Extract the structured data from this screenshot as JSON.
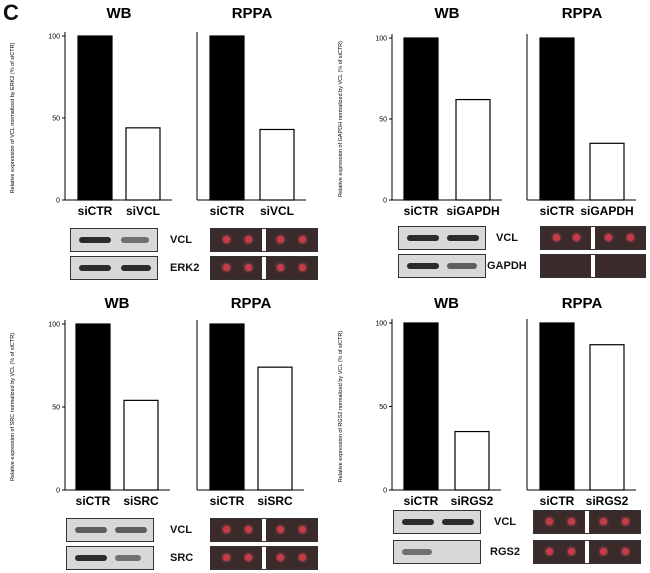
{
  "panel_letter": "C",
  "chart_data": [
    {
      "type": "bar",
      "title": "WB",
      "ylabel": "Relative expression of VCL normalized by ERK2 (% of siCTR)",
      "categories": [
        "siCTR",
        "siVCL"
      ],
      "values": [
        100,
        44
      ],
      "ylim": [
        0,
        100
      ],
      "yticks": [
        "0",
        "50",
        "100"
      ],
      "bar_colors": [
        "#000000",
        "#ffffff"
      ]
    },
    {
      "type": "bar",
      "title": "RPPA",
      "ylabel": "",
      "categories": [
        "siCTR",
        "siVCL"
      ],
      "values": [
        100,
        43
      ],
      "ylim": [
        0,
        100
      ],
      "yticks": [],
      "bar_colors": [
        "#000000",
        "#ffffff"
      ]
    },
    {
      "type": "bar",
      "title": "WB",
      "ylabel": "Relative expression of GAPDH normalized by VCL (% of siCTR)",
      "categories": [
        "siCTR",
        "siGAPDH"
      ],
      "values": [
        100,
        62
      ],
      "ylim": [
        0,
        100
      ],
      "yticks": [
        "0",
        "50",
        "100"
      ],
      "bar_colors": [
        "#000000",
        "#ffffff"
      ]
    },
    {
      "type": "bar",
      "title": "RPPA",
      "ylabel": "",
      "categories": [
        "siCTR",
        "siGAPDH"
      ],
      "values": [
        100,
        35
      ],
      "ylim": [
        0,
        100
      ],
      "yticks": [],
      "bar_colors": [
        "#000000",
        "#ffffff"
      ]
    },
    {
      "type": "bar",
      "title": "WB",
      "ylabel": "Relative expression of SRC normalized by VCL (% of siCTR)",
      "categories": [
        "siCTR",
        "siSRC"
      ],
      "values": [
        100,
        54
      ],
      "ylim": [
        0,
        100
      ],
      "yticks": [
        "0",
        "50",
        "100"
      ],
      "bar_colors": [
        "#000000",
        "#ffffff"
      ]
    },
    {
      "type": "bar",
      "title": "RPPA",
      "ylabel": "",
      "categories": [
        "siCTR",
        "siSRC"
      ],
      "values": [
        100,
        74
      ],
      "ylim": [
        0,
        100
      ],
      "yticks": [],
      "bar_colors": [
        "#000000",
        "#ffffff"
      ]
    },
    {
      "type": "bar",
      "title": "WB",
      "ylabel": "Relative expression of RGS2 normalized by VCL (% of siCTR)",
      "categories": [
        "siCTR",
        "siRGS2"
      ],
      "values": [
        100,
        35
      ],
      "ylim": [
        0,
        100
      ],
      "yticks": [
        "0",
        "50",
        "100"
      ],
      "bar_colors": [
        "#000000",
        "#ffffff"
      ]
    },
    {
      "type": "bar",
      "title": "RPPA",
      "ylabel": "",
      "categories": [
        "siCTR",
        "siRGS2"
      ],
      "values": [
        100,
        87
      ],
      "ylim": [
        0,
        100
      ],
      "yticks": [],
      "bar_colors": [
        "#000000",
        "#ffffff"
      ]
    }
  ],
  "blot_labels": {
    "tl": [
      "VCL",
      "ERK2"
    ],
    "tr": [
      "VCL",
      "GAPDH"
    ],
    "bl": [
      "VCL",
      "SRC"
    ],
    "br": [
      "VCL",
      "RGS2"
    ]
  },
  "colors": {
    "bar_control": "#000000",
    "bar_knockdown": "#ffffff",
    "array_spot": "#c83a48"
  }
}
